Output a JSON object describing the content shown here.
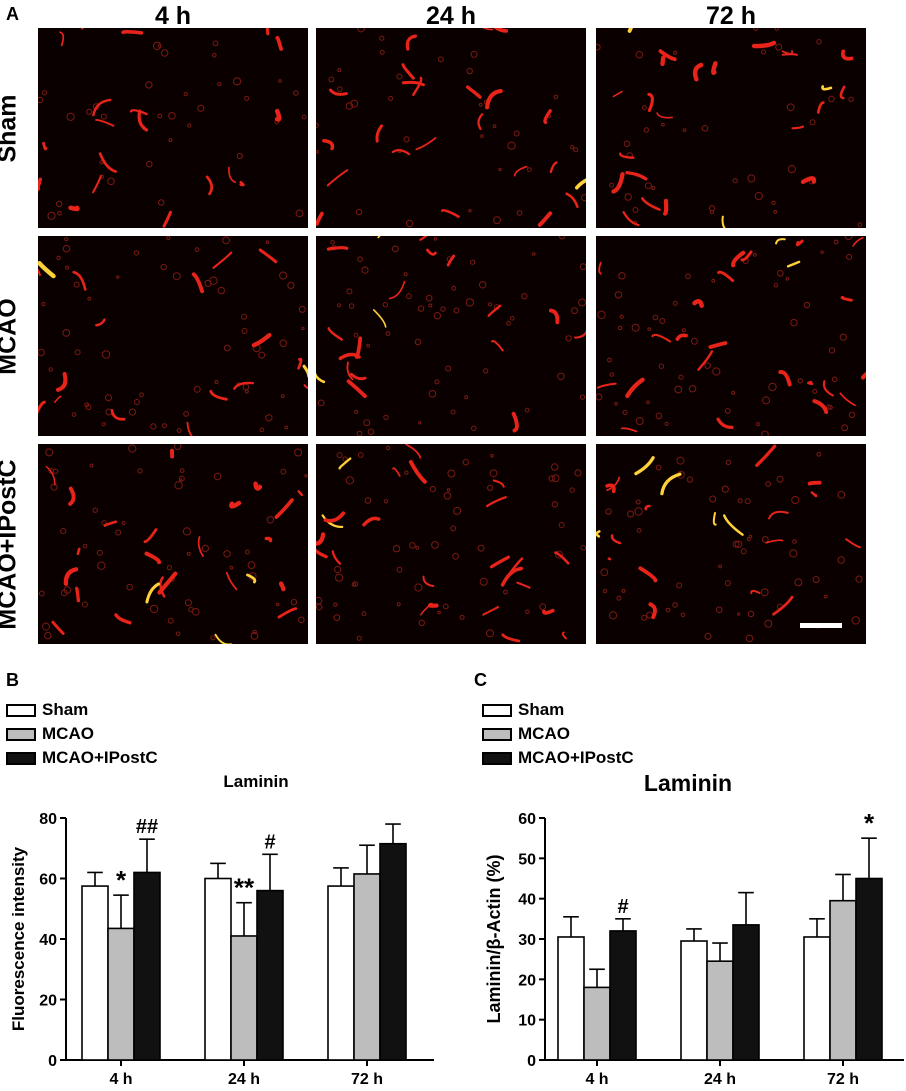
{
  "panel_a": {
    "letter": "A",
    "columns": [
      "4 h",
      "24 h",
      "72 h"
    ],
    "rows": [
      "Sham",
      "MCAO",
      "MCAO+IPostC"
    ]
  },
  "panel_b": {
    "letter": "B",
    "legend": [
      "Sham",
      "MCAO",
      "MCAO+IPostC"
    ]
  },
  "panel_c": {
    "letter": "C",
    "legend": [
      "Sham",
      "MCAO",
      "MCAO+IPostC"
    ]
  },
  "colors": {
    "sham": "#ffffff",
    "mcao": "#bdbdbd",
    "ipostc": "#111111",
    "vessel": "#e8241a"
  },
  "chart_data": [
    {
      "type": "bar",
      "title": "Laminin",
      "ylabel": "Fluorescence intensity",
      "xlabel": "",
      "categories": [
        "4 h",
        "24 h",
        "72 h"
      ],
      "ylim": [
        0,
        80
      ],
      "yticks": [
        0,
        20,
        40,
        60,
        80
      ],
      "series": [
        {
          "name": "Sham",
          "values": [
            57.5,
            60,
            57.5
          ],
          "errors": [
            4.5,
            5,
            6
          ]
        },
        {
          "name": "MCAO",
          "values": [
            43.5,
            41,
            61.5
          ],
          "errors": [
            11,
            11,
            9.5
          ]
        },
        {
          "name": "MCAO+IPostC",
          "values": [
            62,
            56,
            71.5
          ],
          "errors": [
            11,
            12,
            6.5
          ]
        }
      ],
      "annotations": [
        {
          "category": 0,
          "series": 1,
          "text": "*"
        },
        {
          "category": 0,
          "series": 2,
          "text": "##"
        },
        {
          "category": 1,
          "series": 1,
          "text": "**"
        },
        {
          "category": 1,
          "series": 2,
          "text": "#"
        }
      ]
    },
    {
      "type": "bar",
      "title": "Laminin",
      "ylabel": "Laminin/β-Actin (%)",
      "xlabel": "",
      "categories": [
        "4 h",
        "24 h",
        "72 h"
      ],
      "ylim": [
        0,
        60
      ],
      "yticks": [
        0,
        10,
        20,
        30,
        40,
        50,
        60
      ],
      "series": [
        {
          "name": "Sham",
          "values": [
            30.5,
            29.5,
            30.5
          ],
          "errors": [
            5,
            3,
            4.5
          ]
        },
        {
          "name": "MCAO",
          "values": [
            18,
            24.5,
            39.5
          ],
          "errors": [
            4.5,
            4.5,
            6.5
          ]
        },
        {
          "name": "MCAO+IPostC",
          "values": [
            32,
            33.5,
            45
          ],
          "errors": [
            3,
            8,
            10
          ]
        }
      ],
      "annotations": [
        {
          "category": 0,
          "series": 2,
          "text": "#"
        },
        {
          "category": 2,
          "series": 2,
          "text": "*"
        }
      ]
    }
  ]
}
